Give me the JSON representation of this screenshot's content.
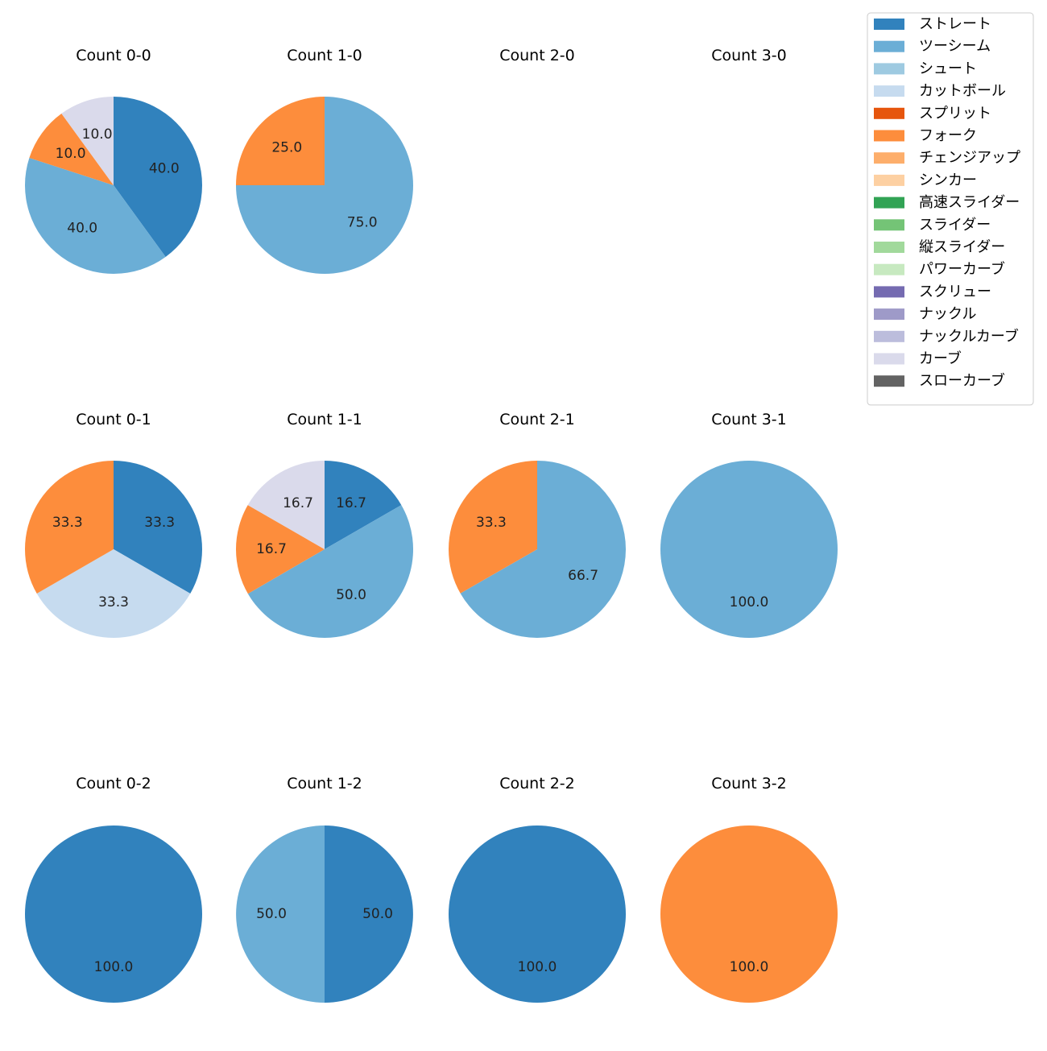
{
  "chart_data": {
    "type": "pie",
    "legend_position": "top-right",
    "categories": [
      {
        "name": "ストレート",
        "color": "#3182bd"
      },
      {
        "name": "ツーシーム",
        "color": "#6baed6"
      },
      {
        "name": "シュート",
        "color": "#9ecae1"
      },
      {
        "name": "カットボール",
        "color": "#c6dbef"
      },
      {
        "name": "スプリット",
        "color": "#e6550d"
      },
      {
        "name": "フォーク",
        "color": "#fd8d3c"
      },
      {
        "name": "チェンジアップ",
        "color": "#fdae6b"
      },
      {
        "name": "シンカー",
        "color": "#fdd0a2"
      },
      {
        "name": "高速スライダー",
        "color": "#31a354"
      },
      {
        "name": "スライダー",
        "color": "#74c476"
      },
      {
        "name": "縦スライダー",
        "color": "#a1d99b"
      },
      {
        "name": "パワーカーブ",
        "color": "#c7e9c0"
      },
      {
        "name": "スクリュー",
        "color": "#756bb1"
      },
      {
        "name": "ナックル",
        "color": "#9e9ac8"
      },
      {
        "name": "ナックルカーブ",
        "color": "#bcbddc"
      },
      {
        "name": "カーブ",
        "color": "#dadaeb"
      },
      {
        "name": "スローカーブ",
        "color": "#636363"
      }
    ],
    "panels": [
      {
        "title": "Count 0-0",
        "slices": [
          {
            "category": "ストレート",
            "value": 40.0,
            "label": "40.0"
          },
          {
            "category": "ツーシーム",
            "value": 40.0,
            "label": "40.0"
          },
          {
            "category": "フォーク",
            "value": 10.0,
            "label": "10.0"
          },
          {
            "category": "カーブ",
            "value": 10.0,
            "label": "10.0"
          }
        ]
      },
      {
        "title": "Count 1-0",
        "slices": [
          {
            "category": "ツーシーム",
            "value": 75.0,
            "label": "75.0"
          },
          {
            "category": "フォーク",
            "value": 25.0,
            "label": "25.0"
          }
        ]
      },
      {
        "title": "Count 2-0",
        "slices": []
      },
      {
        "title": "Count 3-0",
        "slices": []
      },
      {
        "title": "Count 0-1",
        "slices": [
          {
            "category": "ストレート",
            "value": 33.3,
            "label": "33.3"
          },
          {
            "category": "カットボール",
            "value": 33.3,
            "label": "33.3"
          },
          {
            "category": "フォーク",
            "value": 33.3,
            "label": "33.3"
          }
        ]
      },
      {
        "title": "Count 1-1",
        "slices": [
          {
            "category": "ストレート",
            "value": 16.7,
            "label": "16.7"
          },
          {
            "category": "ツーシーム",
            "value": 50.0,
            "label": "50.0"
          },
          {
            "category": "フォーク",
            "value": 16.7,
            "label": "16.7"
          },
          {
            "category": "カーブ",
            "value": 16.7,
            "label": "16.7"
          }
        ]
      },
      {
        "title": "Count 2-1",
        "slices": [
          {
            "category": "ツーシーム",
            "value": 66.7,
            "label": "66.7"
          },
          {
            "category": "フォーク",
            "value": 33.3,
            "label": "33.3"
          }
        ]
      },
      {
        "title": "Count 3-1",
        "slices": [
          {
            "category": "ツーシーム",
            "value": 100.0,
            "label": "100.0"
          }
        ]
      },
      {
        "title": "Count 0-2",
        "slices": [
          {
            "category": "ストレート",
            "value": 100.0,
            "label": "100.0"
          }
        ]
      },
      {
        "title": "Count 1-2",
        "slices": [
          {
            "category": "ストレート",
            "value": 50.0,
            "label": "50.0"
          },
          {
            "category": "ツーシーム",
            "value": 50.0,
            "label": "50.0"
          }
        ]
      },
      {
        "title": "Count 2-2",
        "slices": [
          {
            "category": "ストレート",
            "value": 100.0,
            "label": "100.0"
          }
        ]
      },
      {
        "title": "Count 3-2",
        "slices": [
          {
            "category": "フォーク",
            "value": 100.0,
            "label": "100.0"
          }
        ]
      }
    ]
  }
}
